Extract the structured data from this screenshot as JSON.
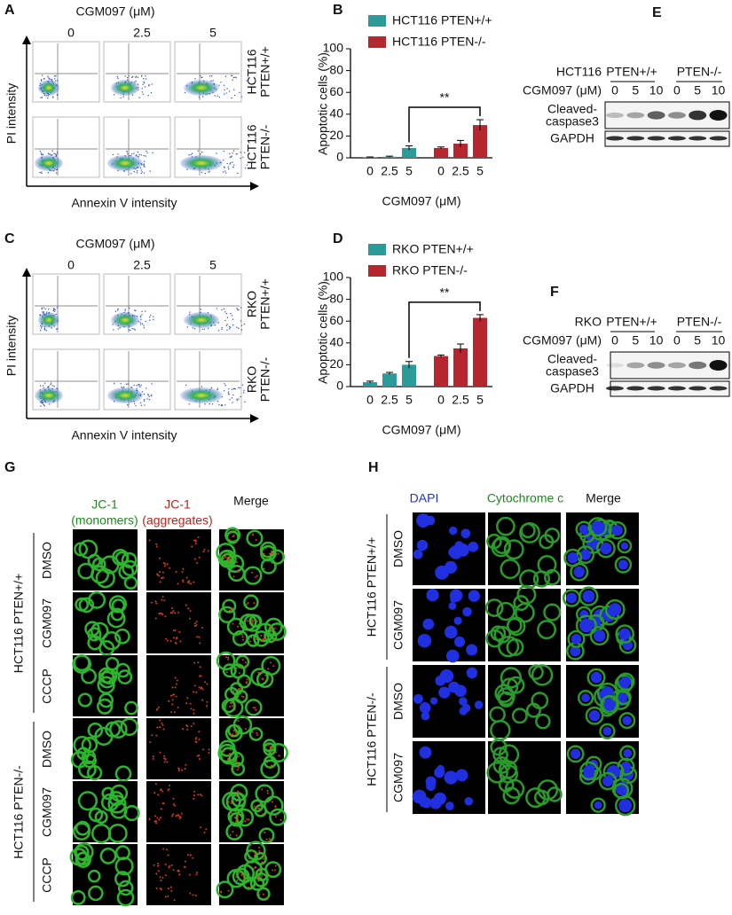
{
  "panel_labels": [
    "A",
    "B",
    "C",
    "D",
    "E",
    "F",
    "G",
    "H"
  ],
  "flow_panels": [
    {
      "title": "CGM097 (μM)",
      "columns": [
        "0",
        "2.5",
        "5"
      ],
      "rows": [
        [
          "HCT116",
          "PTEN+/+"
        ],
        [
          "HCT116",
          "PTEN-/-"
        ]
      ],
      "y_axis": "PI intensity",
      "x_axis": "Annexin V intensity"
    },
    {
      "title": "CGM097 (μM)",
      "columns": [
        "0",
        "2.5",
        "5"
      ],
      "rows": [
        [
          "RKO",
          "PTEN+/+"
        ],
        [
          "RKO",
          "PTEN-/-"
        ]
      ],
      "y_axis": "PI intensity",
      "x_axis": "Annexin V intensity"
    }
  ],
  "chart_data": [
    {
      "type": "bar",
      "categories": [
        "0",
        "2.5",
        "5"
      ],
      "x_label": "CGM097 (μM)",
      "y_label": "Apoptotic cells (%)",
      "series": [
        {
          "name": "HCT116 PTEN+/+",
          "color": "#2a9a9a",
          "values": [
            0.5,
            1,
            9
          ],
          "errors": [
            0.3,
            0.5,
            2
          ]
        },
        {
          "name": "HCT116 PTEN-/-",
          "color": "#b5262e",
          "values": [
            9,
            13,
            30
          ],
          "errors": [
            1,
            3,
            5
          ]
        }
      ],
      "ylim": [
        0,
        100
      ],
      "yticks": [
        0,
        20,
        40,
        60,
        80,
        100
      ],
      "annotation": "**"
    },
    {
      "type": "bar",
      "categories": [
        "0",
        "2.5",
        "5"
      ],
      "x_label": "CGM097 (μM)",
      "y_label": "Apoptotic cells (%)",
      "series": [
        {
          "name": "RKO PTEN+/+",
          "color": "#2a9a9a",
          "values": [
            4,
            12,
            20
          ],
          "errors": [
            1,
            1,
            3
          ]
        },
        {
          "name": "RKO PTEN-/-",
          "color": "#b5262e",
          "values": [
            28,
            35,
            63
          ],
          "errors": [
            1,
            4,
            3
          ]
        }
      ],
      "ylim": [
        0,
        100
      ],
      "yticks": [
        0,
        20,
        40,
        60,
        80,
        100
      ],
      "annotation": "**"
    }
  ],
  "blots": [
    {
      "cell_line": "HCT116",
      "groups": [
        "PTEN+/+",
        "PTEN-/-"
      ],
      "treatment": "CGM097 (μM)",
      "lanes": [
        "0",
        "5",
        "10",
        "0",
        "5",
        "10"
      ],
      "bands": [
        [
          "Cleaved-",
          "caspase3"
        ],
        [
          "GAPDH"
        ]
      ]
    },
    {
      "cell_line": "RKO",
      "groups": [
        "PTEN+/+",
        "PTEN-/-"
      ],
      "treatment": "CGM097 (μM)",
      "lanes": [
        "0",
        "5",
        "10",
        "0",
        "5",
        "10"
      ],
      "bands": [
        [
          "Cleaved-",
          "caspase3"
        ],
        [
          "GAPDH"
        ]
      ]
    }
  ],
  "jc1": {
    "columns": [
      [
        "JC-1",
        "(monomers)"
      ],
      [
        "JC-1",
        "(aggregates)"
      ],
      [
        "Merge"
      ]
    ],
    "groups": [
      {
        "label": "HCT116 PTEN+/+",
        "rows": [
          "DMSO",
          "CGM097",
          "CCCP"
        ]
      },
      {
        "label": "HCT116 PTEN-/-",
        "rows": [
          "DMSO",
          "CGM097",
          "CCCP"
        ]
      }
    ]
  },
  "cytc": {
    "columns": [
      "DAPI",
      "Cytochrome c",
      "Merge"
    ],
    "groups": [
      {
        "label": "HCT116 PTEN+/+",
        "rows": [
          "DMSO",
          "CGM097"
        ]
      },
      {
        "label": "HCT116 PTEN-/-",
        "rows": [
          "DMSO",
          "CGM097"
        ]
      }
    ]
  }
}
